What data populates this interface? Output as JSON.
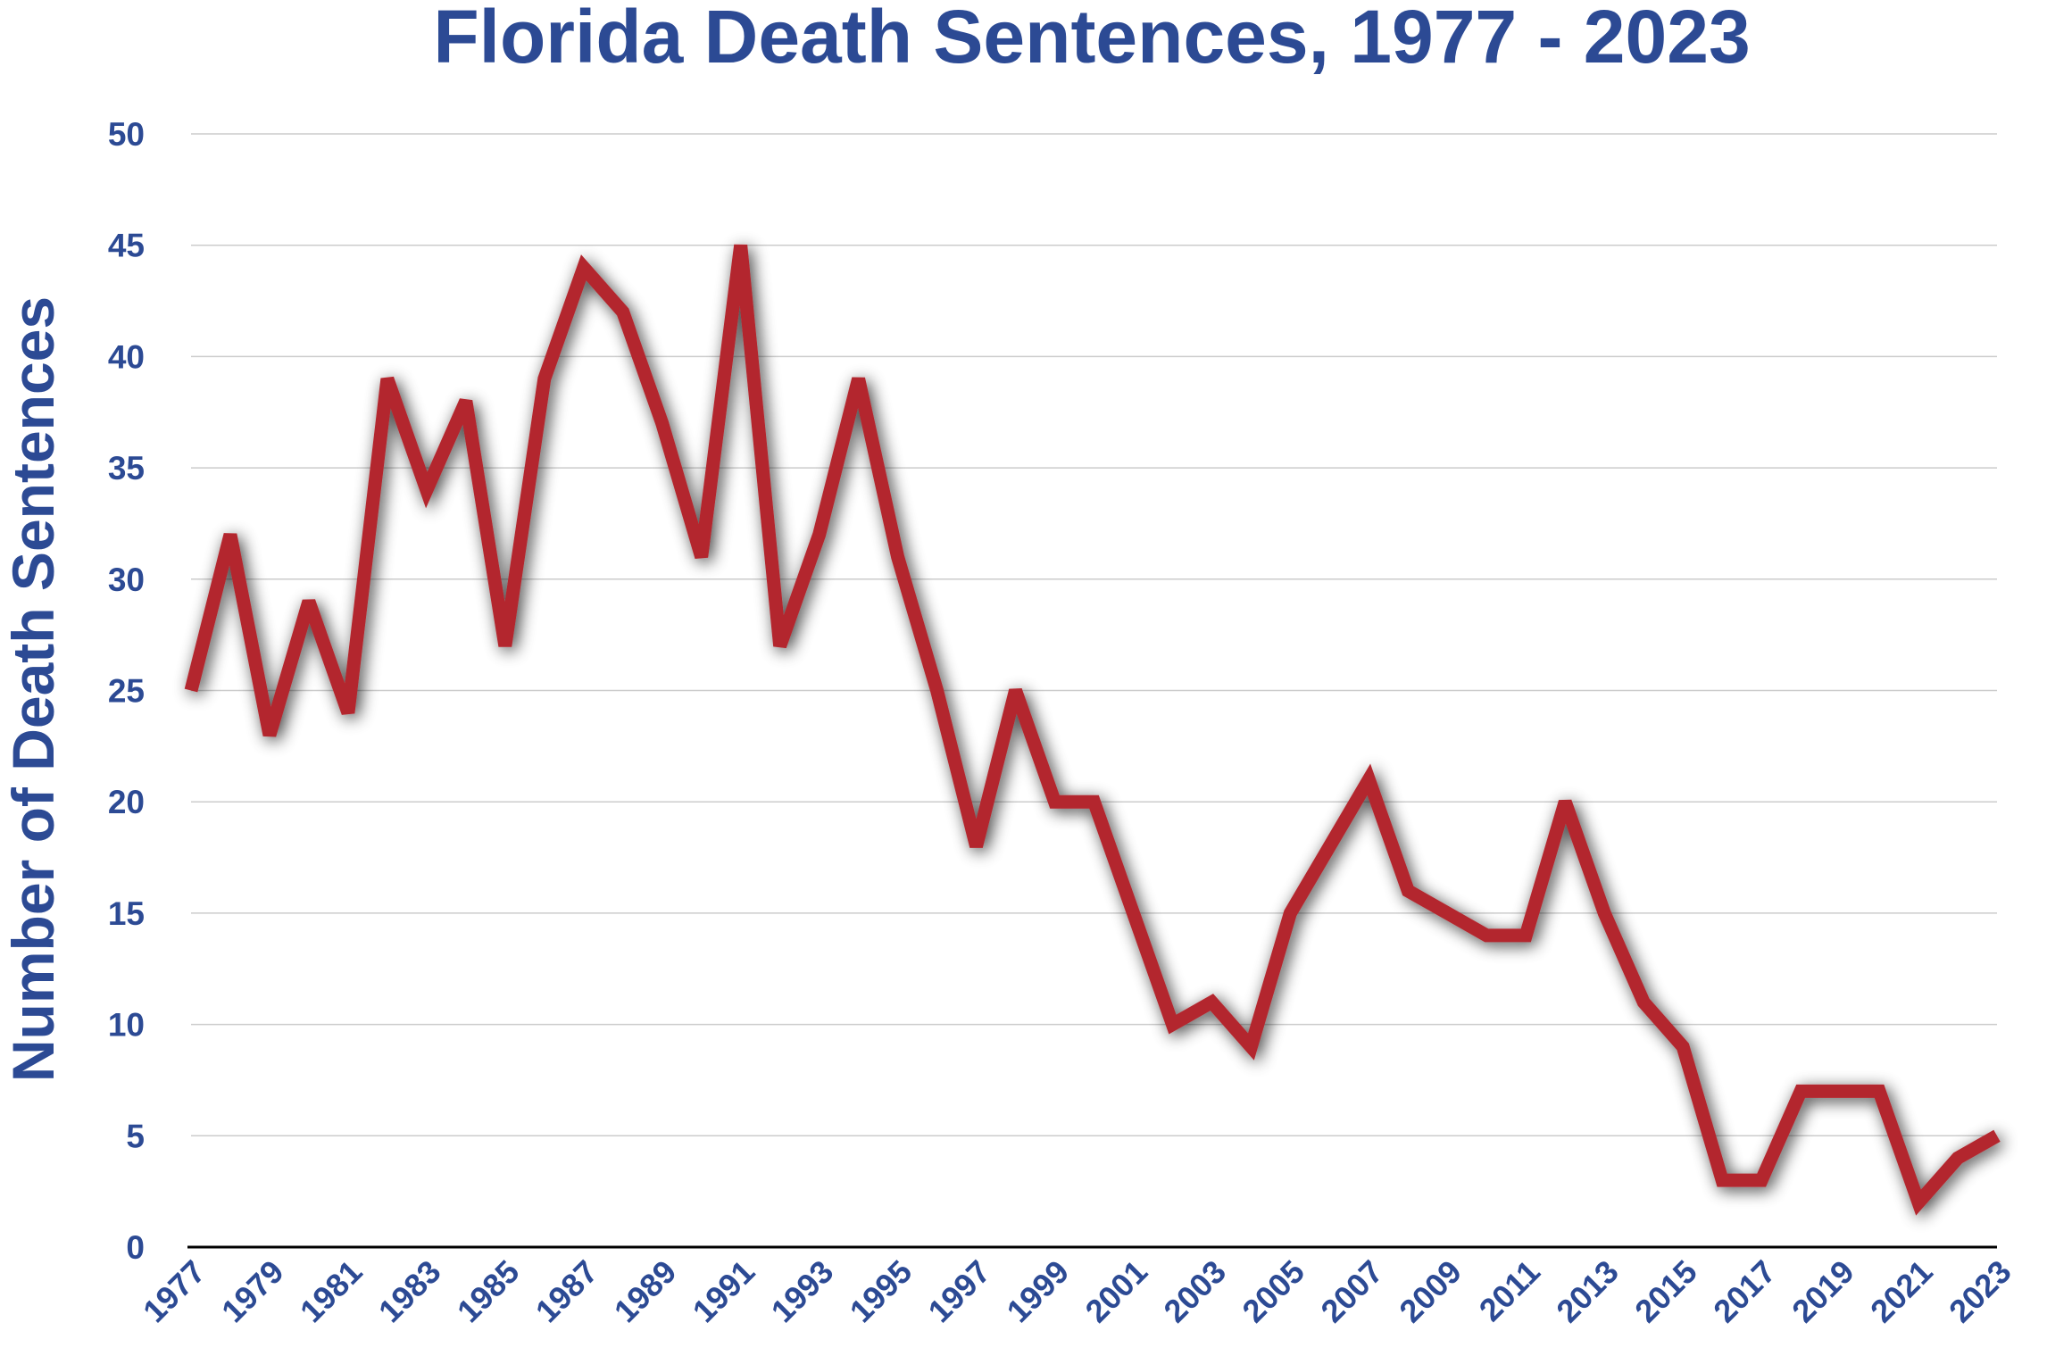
{
  "chart_data": {
    "type": "line",
    "title": "Florida Death Sentences, 1977 - 2023",
    "xlabel": "",
    "ylabel": "Number of Death Sentences",
    "ylim": [
      0,
      50
    ],
    "yticks": [
      0,
      5,
      10,
      15,
      20,
      25,
      30,
      35,
      40,
      45,
      50
    ],
    "xtick_labels": [
      "1977",
      "1979",
      "1981",
      "1983",
      "1985",
      "1987",
      "1989",
      "1991",
      "1993",
      "1995",
      "1997",
      "1999",
      "2001",
      "2003",
      "2005",
      "2007",
      "2009",
      "2011",
      "2013",
      "2015",
      "2017",
      "2019",
      "2021",
      "2023"
    ],
    "grid": true,
    "colors": {
      "title": "#2c4a94",
      "line": "#b3262d",
      "grid": "#cccccc",
      "axis": "#000000"
    },
    "series": [
      {
        "name": "Death Sentences",
        "x": [
          1977,
          1978,
          1979,
          1980,
          1981,
          1982,
          1983,
          1984,
          1985,
          1986,
          1987,
          1988,
          1989,
          1990,
          1991,
          1992,
          1993,
          1994,
          1995,
          1996,
          1997,
          1998,
          1999,
          2000,
          2001,
          2002,
          2003,
          2004,
          2005,
          2006,
          2007,
          2008,
          2009,
          2010,
          2011,
          2012,
          2013,
          2014,
          2015,
          2016,
          2017,
          2018,
          2019,
          2020,
          2021,
          2022,
          2023
        ],
        "values": [
          25,
          32,
          23,
          29,
          24,
          39,
          34,
          38,
          27,
          39,
          44,
          42,
          37,
          31,
          45,
          27,
          32,
          39,
          31,
          25,
          18,
          25,
          20,
          20,
          15,
          10,
          11,
          9,
          15,
          18,
          21,
          16,
          15,
          14,
          14,
          20,
          15,
          11,
          9,
          3,
          3,
          7,
          7,
          7,
          2,
          4,
          5
        ]
      }
    ]
  }
}
